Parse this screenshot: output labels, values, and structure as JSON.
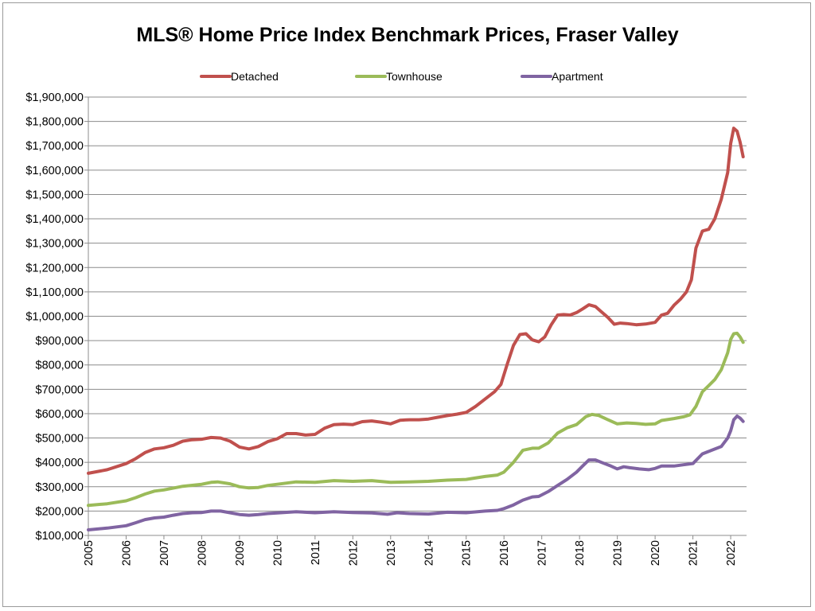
{
  "chart_data": {
    "type": "line",
    "title": "MLS® Home Price Index Benchmark Prices, Fraser Valley",
    "xlabel": "",
    "ylabel": "",
    "x_range": [
      2005.0,
      2022.42
    ],
    "ylim": [
      100000,
      1900000
    ],
    "y_step": 100000,
    "yticks": [
      "$100,000",
      "$200,000",
      "$300,000",
      "$400,000",
      "$500,000",
      "$600,000",
      "$700,000",
      "$800,000",
      "$900,000",
      "$1,000,000",
      "$1,100,000",
      "$1,200,000",
      "$1,300,000",
      "$1,400,000",
      "$1,500,000",
      "$1,600,000",
      "$1,700,000",
      "$1,800,000",
      "$1,900,000"
    ],
    "xticks": [
      "2005",
      "2006",
      "2007",
      "2008",
      "2009",
      "2010",
      "2011",
      "2012",
      "2013",
      "2014",
      "2015",
      "2016",
      "2017",
      "2018",
      "2019",
      "2020",
      "2021",
      "2022"
    ],
    "grid": "horizontal",
    "legend_position": "top",
    "series": [
      {
        "name": "Detached",
        "color": "#c0504d",
        "points": [
          [
            2005.0,
            355000
          ],
          [
            2005.5,
            370000
          ],
          [
            2006.0,
            395000
          ],
          [
            2006.25,
            415000
          ],
          [
            2006.5,
            440000
          ],
          [
            2006.75,
            455000
          ],
          [
            2007.0,
            460000
          ],
          [
            2007.25,
            470000
          ],
          [
            2007.5,
            487000
          ],
          [
            2007.75,
            493000
          ],
          [
            2008.0,
            495000
          ],
          [
            2008.25,
            502000
          ],
          [
            2008.5,
            500000
          ],
          [
            2008.75,
            487000
          ],
          [
            2009.0,
            463000
          ],
          [
            2009.25,
            455000
          ],
          [
            2009.5,
            465000
          ],
          [
            2009.75,
            485000
          ],
          [
            2010.0,
            497000
          ],
          [
            2010.25,
            518000
          ],
          [
            2010.5,
            518000
          ],
          [
            2010.75,
            512000
          ],
          [
            2011.0,
            515000
          ],
          [
            2011.25,
            540000
          ],
          [
            2011.5,
            555000
          ],
          [
            2011.75,
            557000
          ],
          [
            2012.0,
            555000
          ],
          [
            2012.25,
            567000
          ],
          [
            2012.5,
            570000
          ],
          [
            2012.75,
            565000
          ],
          [
            2013.0,
            558000
          ],
          [
            2013.25,
            573000
          ],
          [
            2013.5,
            575000
          ],
          [
            2013.75,
            575000
          ],
          [
            2014.0,
            578000
          ],
          [
            2014.25,
            585000
          ],
          [
            2014.5,
            592000
          ],
          [
            2014.75,
            598000
          ],
          [
            2015.0,
            605000
          ],
          [
            2015.25,
            630000
          ],
          [
            2015.5,
            660000
          ],
          [
            2015.75,
            690000
          ],
          [
            2015.92,
            720000
          ],
          [
            2016.08,
            800000
          ],
          [
            2016.25,
            880000
          ],
          [
            2016.42,
            925000
          ],
          [
            2016.58,
            928000
          ],
          [
            2016.75,
            903000
          ],
          [
            2016.92,
            895000
          ],
          [
            2017.08,
            915000
          ],
          [
            2017.25,
            965000
          ],
          [
            2017.42,
            1005000
          ],
          [
            2017.58,
            1007000
          ],
          [
            2017.75,
            1005000
          ],
          [
            2017.92,
            1015000
          ],
          [
            2018.08,
            1030000
          ],
          [
            2018.25,
            1047000
          ],
          [
            2018.42,
            1040000
          ],
          [
            2018.58,
            1018000
          ],
          [
            2018.75,
            995000
          ],
          [
            2018.92,
            967000
          ],
          [
            2019.08,
            972000
          ],
          [
            2019.25,
            970000
          ],
          [
            2019.5,
            965000
          ],
          [
            2019.75,
            968000
          ],
          [
            2020.0,
            975000
          ],
          [
            2020.17,
            1005000
          ],
          [
            2020.33,
            1012000
          ],
          [
            2020.5,
            1045000
          ],
          [
            2020.67,
            1070000
          ],
          [
            2020.83,
            1100000
          ],
          [
            2020.96,
            1150000
          ],
          [
            2021.08,
            1280000
          ],
          [
            2021.25,
            1350000
          ],
          [
            2021.42,
            1357000
          ],
          [
            2021.58,
            1400000
          ],
          [
            2021.75,
            1480000
          ],
          [
            2021.92,
            1590000
          ],
          [
            2022.0,
            1710000
          ],
          [
            2022.08,
            1772000
          ],
          [
            2022.17,
            1760000
          ],
          [
            2022.25,
            1715000
          ],
          [
            2022.33,
            1655000
          ]
        ]
      },
      {
        "name": "Townhouse",
        "color": "#9bbb59",
        "points": [
          [
            2005.0,
            223000
          ],
          [
            2005.5,
            230000
          ],
          [
            2006.0,
            242000
          ],
          [
            2006.25,
            255000
          ],
          [
            2006.5,
            270000
          ],
          [
            2006.75,
            282000
          ],
          [
            2007.0,
            287000
          ],
          [
            2007.5,
            302000
          ],
          [
            2008.0,
            310000
          ],
          [
            2008.25,
            318000
          ],
          [
            2008.42,
            320000
          ],
          [
            2008.75,
            312000
          ],
          [
            2009.0,
            300000
          ],
          [
            2009.25,
            295000
          ],
          [
            2009.5,
            297000
          ],
          [
            2009.75,
            305000
          ],
          [
            2010.0,
            310000
          ],
          [
            2010.5,
            320000
          ],
          [
            2011.0,
            318000
          ],
          [
            2011.5,
            325000
          ],
          [
            2012.0,
            322000
          ],
          [
            2012.5,
            325000
          ],
          [
            2013.0,
            318000
          ],
          [
            2013.5,
            320000
          ],
          [
            2014.0,
            322000
          ],
          [
            2014.5,
            327000
          ],
          [
            2015.0,
            330000
          ],
          [
            2015.5,
            342000
          ],
          [
            2015.83,
            348000
          ],
          [
            2016.0,
            360000
          ],
          [
            2016.25,
            400000
          ],
          [
            2016.5,
            450000
          ],
          [
            2016.75,
            458000
          ],
          [
            2016.92,
            458000
          ],
          [
            2017.17,
            480000
          ],
          [
            2017.42,
            520000
          ],
          [
            2017.67,
            542000
          ],
          [
            2017.92,
            555000
          ],
          [
            2018.17,
            588000
          ],
          [
            2018.33,
            597000
          ],
          [
            2018.5,
            593000
          ],
          [
            2018.75,
            575000
          ],
          [
            2019.0,
            558000
          ],
          [
            2019.25,
            562000
          ],
          [
            2019.5,
            560000
          ],
          [
            2019.75,
            556000
          ],
          [
            2020.0,
            558000
          ],
          [
            2020.17,
            572000
          ],
          [
            2020.5,
            580000
          ],
          [
            2020.75,
            587000
          ],
          [
            2020.92,
            595000
          ],
          [
            2021.08,
            630000
          ],
          [
            2021.25,
            690000
          ],
          [
            2021.42,
            715000
          ],
          [
            2021.58,
            740000
          ],
          [
            2021.75,
            780000
          ],
          [
            2021.92,
            850000
          ],
          [
            2022.0,
            905000
          ],
          [
            2022.08,
            928000
          ],
          [
            2022.17,
            930000
          ],
          [
            2022.25,
            915000
          ],
          [
            2022.33,
            893000
          ]
        ]
      },
      {
        "name": "Apartment",
        "color": "#8064a2",
        "points": [
          [
            2005.0,
            123000
          ],
          [
            2005.5,
            130000
          ],
          [
            2006.0,
            140000
          ],
          [
            2006.25,
            152000
          ],
          [
            2006.5,
            165000
          ],
          [
            2006.75,
            172000
          ],
          [
            2007.0,
            175000
          ],
          [
            2007.25,
            183000
          ],
          [
            2007.5,
            190000
          ],
          [
            2007.75,
            193000
          ],
          [
            2008.0,
            194000
          ],
          [
            2008.25,
            200000
          ],
          [
            2008.5,
            200000
          ],
          [
            2008.75,
            193000
          ],
          [
            2009.0,
            186000
          ],
          [
            2009.25,
            183000
          ],
          [
            2009.5,
            186000
          ],
          [
            2009.75,
            190000
          ],
          [
            2010.0,
            192000
          ],
          [
            2010.5,
            197000
          ],
          [
            2011.0,
            193000
          ],
          [
            2011.5,
            197000
          ],
          [
            2012.0,
            194000
          ],
          [
            2012.5,
            192000
          ],
          [
            2012.92,
            187000
          ],
          [
            2013.17,
            193000
          ],
          [
            2013.5,
            190000
          ],
          [
            2014.0,
            188000
          ],
          [
            2014.5,
            195000
          ],
          [
            2015.0,
            193000
          ],
          [
            2015.5,
            200000
          ],
          [
            2015.83,
            203000
          ],
          [
            2016.0,
            210000
          ],
          [
            2016.25,
            225000
          ],
          [
            2016.5,
            245000
          ],
          [
            2016.75,
            258000
          ],
          [
            2016.92,
            260000
          ],
          [
            2017.17,
            280000
          ],
          [
            2017.42,
            305000
          ],
          [
            2017.67,
            330000
          ],
          [
            2017.92,
            360000
          ],
          [
            2018.08,
            385000
          ],
          [
            2018.25,
            410000
          ],
          [
            2018.42,
            410000
          ],
          [
            2018.58,
            400000
          ],
          [
            2018.83,
            385000
          ],
          [
            2019.0,
            373000
          ],
          [
            2019.17,
            382000
          ],
          [
            2019.33,
            378000
          ],
          [
            2019.58,
            373000
          ],
          [
            2019.83,
            370000
          ],
          [
            2020.0,
            375000
          ],
          [
            2020.17,
            385000
          ],
          [
            2020.5,
            385000
          ],
          [
            2020.75,
            390000
          ],
          [
            2021.0,
            395000
          ],
          [
            2021.25,
            435000
          ],
          [
            2021.5,
            450000
          ],
          [
            2021.75,
            465000
          ],
          [
            2021.92,
            500000
          ],
          [
            2022.0,
            530000
          ],
          [
            2022.08,
            575000
          ],
          [
            2022.17,
            590000
          ],
          [
            2022.25,
            582000
          ],
          [
            2022.33,
            568000
          ]
        ]
      }
    ]
  }
}
